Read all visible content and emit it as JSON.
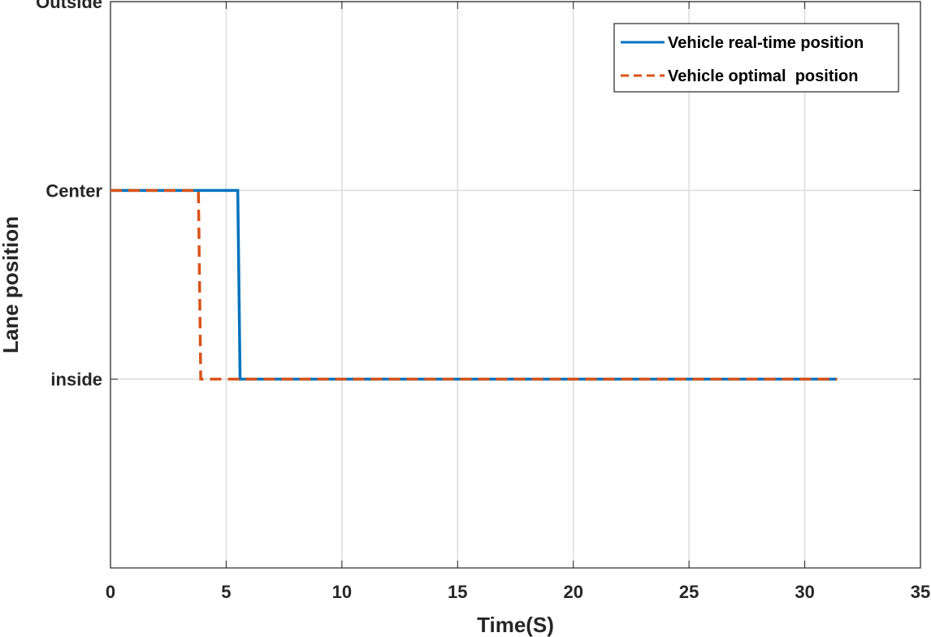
{
  "chart_data": {
    "type": "line",
    "title": "",
    "xlabel": "Time(S)",
    "ylabel": "Lane position",
    "xlim": [
      0,
      35
    ],
    "ylim": [
      -1,
      2
    ],
    "x_ticks": [
      0,
      5,
      10,
      15,
      20,
      25,
      30,
      35
    ],
    "x_tick_labels": [
      "0",
      "5",
      "10",
      "15",
      "20",
      "25",
      "30",
      "35"
    ],
    "y_ticks": [
      0,
      1,
      2
    ],
    "y_tick_labels": [
      "inside",
      "Center",
      "Outside"
    ],
    "grid": true,
    "legend_position": "top-right",
    "series": [
      {
        "name": "Vehicle real-time position",
        "color": "#0072BD",
        "style": "solid",
        "x": [
          0,
          5.5,
          5.6,
          31.4
        ],
        "y": [
          1,
          1,
          0,
          0
        ]
      },
      {
        "name": "Vehicle optimal  position",
        "color": "#D95319",
        "style": "dashed",
        "x": [
          0,
          3.8,
          3.9,
          31.4
        ],
        "y": [
          1,
          1,
          0,
          0
        ]
      }
    ]
  }
}
